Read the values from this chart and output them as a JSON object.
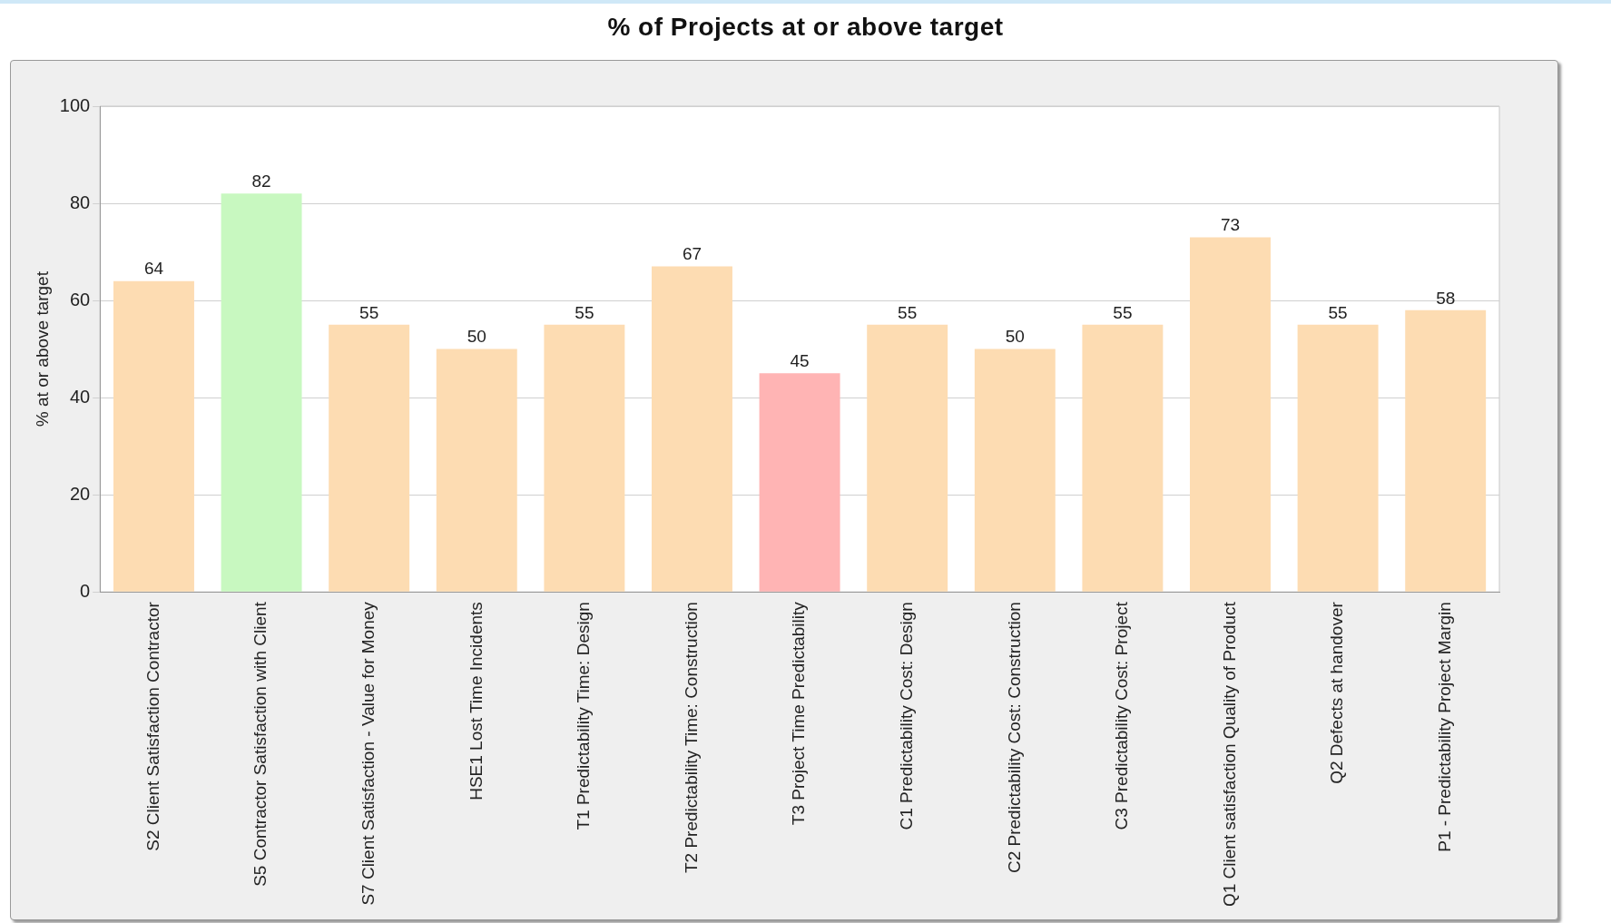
{
  "chart_data": {
    "type": "bar",
    "title": "% of Projects at or above target",
    "ylabel": "% at or above target",
    "categories": [
      "S2 Client Satisfaction Contractor",
      "S5 Contractor Satisfaction with Client",
      "S7 Client Satisfaction - Value for Money",
      "HSE1 Lost Time Incidents",
      "T1 Predictability Time: Design",
      "T2 Predictability Time: Construction",
      "T3 Project Time Predictability",
      "C1 Predictability Cost: Design",
      "C2 Predictability Cost: Construction",
      "C3 Predictability Cost: Project",
      "Q1 Client satisfaction Quality of Product",
      "Q2 Defects at handover",
      "P1 - Predictability Project Margin"
    ],
    "values": [
      64,
      82,
      55,
      50,
      55,
      67,
      45,
      55,
      50,
      55,
      73,
      55,
      58
    ],
    "colors": [
      "#fddcb2",
      "#c8f8c0",
      "#fddcb2",
      "#fddcb2",
      "#fddcb2",
      "#fddcb2",
      "#ffb4b4",
      "#fddcb2",
      "#fddcb2",
      "#fddcb2",
      "#fddcb2",
      "#fddcb2",
      "#fddcb2"
    ],
    "ylim": [
      0,
      100
    ],
    "yticks": [
      0,
      20,
      40,
      60,
      80,
      100
    ],
    "grid": "y",
    "data_labels": true,
    "legend": false
  }
}
